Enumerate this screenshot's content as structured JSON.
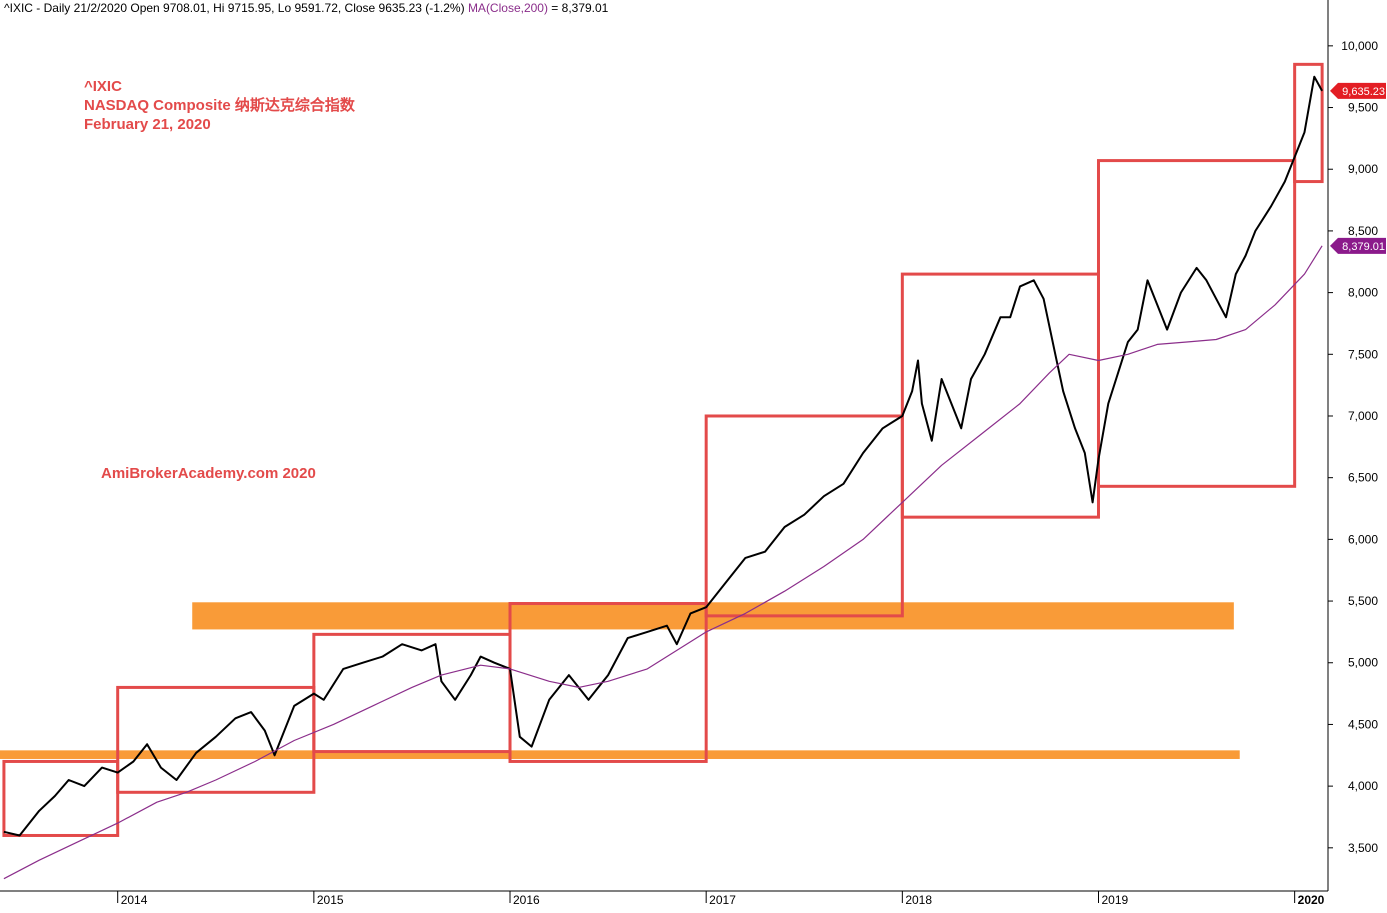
{
  "header": {
    "main": "^IXIC - Daily 21/2/2020 Open 9708.01, Hi 9715.95, Lo 9591.72, Close 9635.23 (-1.2%)",
    "ma_label": "MA(Close,200)",
    "ma_value": " = 8,379.01"
  },
  "annotations": {
    "ticker": "^IXIC",
    "name": "NASDAQ Composite  纳斯达克综合指数",
    "date": "February 21, 2020",
    "watermark": "AmiBrokerAcademy.com   2020"
  },
  "colors": {
    "price": "#000000",
    "ma": "#8b2e8b",
    "box": "#e34a4a",
    "band": "#f99b38",
    "close_tag": "#e31e24",
    "ma_tag": "#8b1a8b"
  },
  "chart_data": {
    "type": "line",
    "title": "",
    "xlabel": "",
    "ylabel": "",
    "ylim": [
      3150,
      10250
    ],
    "y_ticks": [
      3500,
      4000,
      4500,
      5000,
      5500,
      6000,
      6500,
      7000,
      7500,
      8000,
      8500,
      9000,
      9500,
      10000
    ],
    "y_tick_labels": [
      "3,500",
      "4,000",
      "4,500",
      "5,000",
      "5,500",
      "6,000",
      "6,500",
      "7,000",
      "7,500",
      "8,000",
      "8,500",
      "9,000",
      "9,500",
      "10,000"
    ],
    "x_range": [
      2013.4,
      2020.17
    ],
    "x_ticks": [
      2014,
      2015,
      2016,
      2017,
      2018,
      2019,
      2020
    ],
    "x_tick_labels": [
      "2014",
      "2015",
      "2016",
      "2017",
      "2018",
      "2019",
      "2020"
    ],
    "series": [
      {
        "name": "^IXIC",
        "x": [
          2013.42,
          2013.5,
          2013.6,
          2013.68,
          2013.75,
          2013.83,
          2013.92,
          2014.0,
          2014.08,
          2014.15,
          2014.22,
          2014.3,
          2014.4,
          2014.5,
          2014.6,
          2014.68,
          2014.75,
          2014.8,
          2014.9,
          2015.0,
          2015.05,
          2015.15,
          2015.25,
          2015.35,
          2015.45,
          2015.55,
          2015.62,
          2015.65,
          2015.72,
          2015.8,
          2015.85,
          2015.92,
          2016.0,
          2016.05,
          2016.11,
          2016.2,
          2016.3,
          2016.4,
          2016.45,
          2016.5,
          2016.6,
          2016.7,
          2016.8,
          2016.85,
          2016.92,
          2017.0,
          2017.1,
          2017.2,
          2017.3,
          2017.4,
          2017.5,
          2017.6,
          2017.7,
          2017.8,
          2017.9,
          2018.0,
          2018.05,
          2018.08,
          2018.1,
          2018.15,
          2018.2,
          2018.25,
          2018.3,
          2018.35,
          2018.42,
          2018.5,
          2018.55,
          2018.6,
          2018.67,
          2018.72,
          2018.78,
          2018.82,
          2018.88,
          2018.93,
          2018.97,
          2019.0,
          2019.05,
          2019.1,
          2019.15,
          2019.2,
          2019.25,
          2019.3,
          2019.35,
          2019.42,
          2019.5,
          2019.55,
          2019.6,
          2019.65,
          2019.7,
          2019.75,
          2019.8,
          2019.88,
          2019.95,
          2020.0,
          2020.05,
          2020.1,
          2020.14
        ],
        "values": [
          3630,
          3600,
          3800,
          3920,
          4050,
          4000,
          4150,
          4110,
          4200,
          4340,
          4150,
          4050,
          4270,
          4400,
          4550,
          4600,
          4450,
          4250,
          4650,
          4750,
          4700,
          4950,
          5000,
          5050,
          5150,
          5100,
          5150,
          4850,
          4700,
          4900,
          5050,
          5000,
          4950,
          4400,
          4320,
          4700,
          4900,
          4700,
          4800,
          4900,
          5200,
          5250,
          5300,
          5150,
          5400,
          5450,
          5650,
          5850,
          5900,
          6100,
          6200,
          6350,
          6450,
          6700,
          6900,
          7000,
          7200,
          7450,
          7100,
          6800,
          7300,
          7100,
          6900,
          7300,
          7500,
          7800,
          7800,
          8050,
          8100,
          7950,
          7500,
          7200,
          6900,
          6700,
          6300,
          6650,
          7100,
          7350,
          7600,
          7700,
          8100,
          7900,
          7700,
          8000,
          8200,
          8100,
          7950,
          7800,
          8150,
          8300,
          8500,
          8700,
          8900,
          9100,
          9300,
          9750,
          9635
        ]
      },
      {
        "name": "MA(Close,200)",
        "x": [
          2013.42,
          2013.6,
          2013.8,
          2014.0,
          2014.2,
          2014.35,
          2014.5,
          2014.7,
          2014.9,
          2015.1,
          2015.3,
          2015.5,
          2015.65,
          2015.85,
          2016.0,
          2016.2,
          2016.35,
          2016.5,
          2016.7,
          2016.85,
          2017.0,
          2017.2,
          2017.4,
          2017.6,
          2017.8,
          2018.0,
          2018.2,
          2018.4,
          2018.6,
          2018.75,
          2018.85,
          2019.0,
          2019.15,
          2019.3,
          2019.45,
          2019.6,
          2019.75,
          2019.9,
          2020.05,
          2020.14
        ],
        "values": [
          3250,
          3400,
          3550,
          3700,
          3870,
          3950,
          4050,
          4200,
          4370,
          4500,
          4650,
          4800,
          4900,
          4980,
          4950,
          4850,
          4800,
          4850,
          4950,
          5100,
          5250,
          5400,
          5580,
          5780,
          6000,
          6300,
          6600,
          6850,
          7100,
          7350,
          7500,
          7450,
          7500,
          7580,
          7600,
          7620,
          7700,
          7900,
          8150,
          8379
        ]
      }
    ],
    "boxes": [
      {
        "x": [
          2013.42,
          2014.0
        ],
        "y": [
          3600,
          4200
        ]
      },
      {
        "x": [
          2014.0,
          2015.0
        ],
        "y": [
          3950,
          4800
        ]
      },
      {
        "x": [
          2015.0,
          2016.0
        ],
        "y": [
          4280,
          5230
        ]
      },
      {
        "x": [
          2016.0,
          2017.0
        ],
        "y": [
          4200,
          5480
        ]
      },
      {
        "x": [
          2017.0,
          2018.0
        ],
        "y": [
          5380,
          7000
        ]
      },
      {
        "x": [
          2018.0,
          2019.0
        ],
        "y": [
          6180,
          8150
        ]
      },
      {
        "x": [
          2019.0,
          2020.0
        ],
        "y": [
          6430,
          9070
        ]
      },
      {
        "x": [
          2020.0,
          2020.14
        ],
        "y": [
          8900,
          9850
        ]
      }
    ],
    "bands": [
      {
        "x": [
          2014.38,
          2019.69
        ],
        "y": [
          5270,
          5490
        ]
      },
      {
        "x": [
          2013.4,
          2019.72
        ],
        "y": [
          4220,
          4290
        ]
      }
    ],
    "last_close": 9635.23,
    "last_close_label": "9,635.23",
    "last_ma": 8379.01,
    "last_ma_label": "8,379.01",
    "grid": false,
    "legend": "none"
  }
}
